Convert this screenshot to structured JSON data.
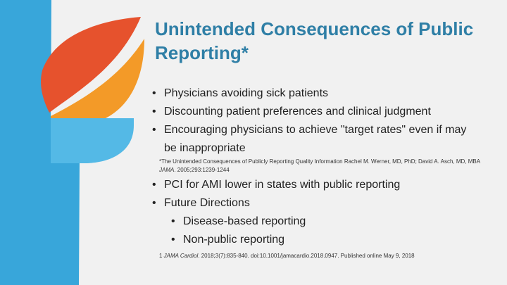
{
  "slide": {
    "title": "Unintended Consequences of Public Reporting*",
    "bullets_group1": [
      "Physicians avoiding sick patients",
      "Discounting patient preferences and clinical judgment",
      "Encouraging physicians to achieve \"target rates\" even if may"
    ],
    "bullets_group1_continuation": "be inappropriate",
    "footnote1": {
      "text_a": "*The Unintended Consequences of Publicly Reporting Quality Information Rachel M. Werner, MD, PhD; David A. Asch, MD, MBA ",
      "journal": "JAMA",
      "text_b": ". 2005;293:1239-1244"
    },
    "bullets_group2": [
      "PCI for AMI lower in states with public reporting",
      "Future Directions"
    ],
    "bullets_group2_sub": [
      "Disease-based reporting",
      "Non-public reporting"
    ],
    "footnote2": {
      "marker": "1 ",
      "journal": "JAMA Cardiol",
      "text": ". 2018;3(7):835-840. doi:10.1001/jamacardio.2018.0947. Published online May 9, 2018"
    },
    "colors": {
      "title": "#2f7fa6",
      "logo_blue": "#3aa5d8",
      "leaf_top": "#e8542e",
      "leaf_bottom": "#f39a2a"
    }
  }
}
